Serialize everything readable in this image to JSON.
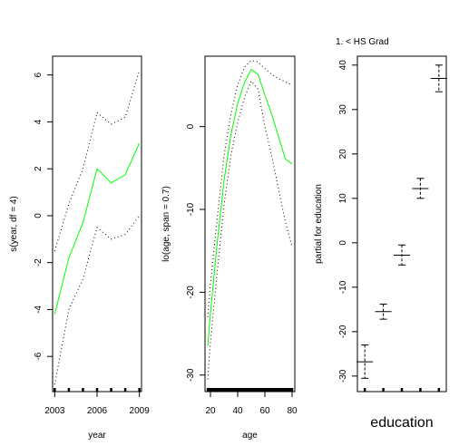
{
  "chart_data": [
    {
      "type": "line",
      "xlabel": "year",
      "ylabel": "s(year, df = 4)",
      "xlim": [
        2002.85,
        2009.15
      ],
      "ylim": [
        -7.5,
        6.8
      ],
      "xticks": [
        "2003",
        "2006",
        "2009"
      ],
      "yticks": [
        "-6",
        "-4",
        "-2",
        "0",
        "2",
        "4",
        "6"
      ],
      "x": [
        2003,
        2004,
        2005,
        2006,
        2007,
        2008,
        2009
      ],
      "series": [
        {
          "role": "fit",
          "color": "#00ff00",
          "dash": "solid",
          "values": [
            -4.2,
            -1.8,
            -0.3,
            2.0,
            1.4,
            1.75,
            3.1
          ]
        },
        {
          "role": "upper",
          "color": "#000000",
          "dash": "dotted",
          "values": [
            -1.5,
            0.5,
            2.0,
            4.4,
            3.9,
            4.2,
            6.2
          ]
        },
        {
          "role": "lower",
          "color": "#000000",
          "dash": "dotted",
          "values": [
            -7.2,
            -4.0,
            -2.7,
            -0.5,
            -1.0,
            -0.8,
            0.0
          ]
        }
      ],
      "rug": [
        2003,
        2004,
        2005,
        2006,
        2007,
        2008,
        2009
      ]
    },
    {
      "type": "line",
      "xlabel": "age",
      "ylabel": "lo(age, span = 0.7)",
      "xlim": [
        16,
        82
      ],
      "ylim": [
        -32,
        8.5
      ],
      "xticks": [
        "20",
        "40",
        "60",
        "80"
      ],
      "yticks": [
        "-30",
        "-20",
        "-10",
        "0"
      ],
      "x": [
        18,
        20,
        25,
        30,
        35,
        40,
        45,
        50,
        55,
        60,
        65,
        70,
        75,
        80
      ],
      "series": [
        {
          "role": "fit",
          "color": "#00ff00",
          "dash": "solid",
          "values": [
            -26.5,
            -22.5,
            -14.0,
            -6.5,
            -1.0,
            2.8,
            5.3,
            6.9,
            6.3,
            3.8,
            1.5,
            -1.2,
            -3.9,
            -4.5
          ]
        },
        {
          "role": "upper",
          "color": "#000000",
          "dash": "dotted",
          "values": [
            -23.0,
            -19.0,
            -11.0,
            -3.5,
            1.5,
            5.0,
            7.2,
            8.0,
            7.8,
            7.0,
            6.3,
            5.8,
            5.4,
            5.0
          ]
        },
        {
          "role": "lower",
          "color": "#000000",
          "dash": "dotted",
          "values": [
            -30.5,
            -26.0,
            -17.5,
            -9.5,
            -3.5,
            0.5,
            3.5,
            5.5,
            4.5,
            0.0,
            -3.5,
            -7.5,
            -11.5,
            -14.5
          ]
        }
      ],
      "rug": [
        18,
        19,
        20,
        21,
        22,
        23,
        24,
        25,
        26,
        27,
        28,
        29,
        30,
        31,
        32,
        33,
        34,
        35,
        36,
        37,
        38,
        39,
        40,
        41,
        42,
        43,
        44,
        45,
        46,
        47,
        48,
        49,
        50,
        51,
        52,
        53,
        54,
        55,
        56,
        57,
        58,
        59,
        60,
        61,
        62,
        63,
        64,
        65,
        66,
        67,
        68,
        69,
        70,
        71,
        72,
        73,
        74,
        75,
        76,
        77,
        78,
        79,
        80
      ]
    },
    {
      "type": "scatter",
      "xlabel": "education",
      "ylabel": "partial for education",
      "level_label": "1. < HS Grad",
      "xlim": [
        0.6,
        5.4
      ],
      "ylim": [
        -33.5,
        42
      ],
      "yticks": [
        "-30",
        "-20",
        "-10",
        "0",
        "10",
        "20",
        "30",
        "40"
      ],
      "levels": [
        {
          "x": 1,
          "fit": -26.8,
          "upper": -23.0,
          "lower": -30.5
        },
        {
          "x": 2,
          "fit": -15.5,
          "upper": -13.8,
          "lower": -17.2
        },
        {
          "x": 3,
          "fit": -2.8,
          "upper": -0.5,
          "lower": -5.0
        },
        {
          "x": 4,
          "fit": 12.2,
          "upper": 14.5,
          "lower": 10.0
        },
        {
          "x": 5,
          "fit": 37.0,
          "upper": 40.0,
          "lower": 34.0
        }
      ],
      "rug": [
        1,
        2,
        3,
        4,
        5
      ]
    }
  ]
}
